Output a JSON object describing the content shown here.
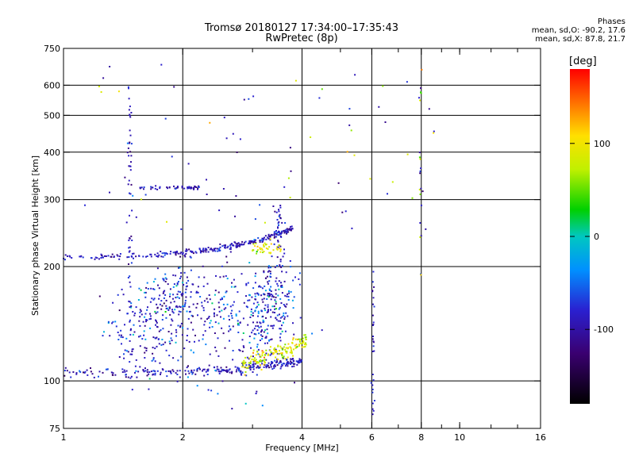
{
  "header": {
    "title_line1": "Tromsø 20180127 17:34:00–17:35:43",
    "title_line2": "RwPretec (8p)"
  },
  "phases_box": {
    "title": "Phases",
    "line_o": "mean, sd,O: -90.2, 17.6",
    "line_x": "mean, sd,X:  87.8, 21.7"
  },
  "colorbar": {
    "unit_label": "[deg]",
    "ticks": [
      "100",
      "0",
      "-100"
    ],
    "tick_values": [
      100,
      0,
      -100
    ],
    "range": [
      -180,
      180
    ]
  },
  "chart_data": {
    "type": "scatter",
    "xlabel": "Frequency [MHz]",
    "ylabel": "Stationary phase Virtual Height [km]",
    "x_scale": "log",
    "y_scale": "log",
    "xlim": [
      1,
      16
    ],
    "ylim": [
      75,
      750
    ],
    "x_ticks": [
      1,
      2,
      4,
      6,
      8,
      10,
      16
    ],
    "x_tick_labels": [
      "1",
      "2",
      "4",
      "6",
      "8",
      "10",
      "16"
    ],
    "y_ticks": [
      75,
      100,
      200,
      300,
      400,
      500,
      600,
      750
    ],
    "y_tick_labels": [
      "75",
      "100",
      "200",
      "300",
      "400",
      "500",
      "600",
      "750"
    ],
    "grid": true,
    "grid_x": [
      2,
      4,
      6,
      8
    ],
    "grid_y": [
      100,
      200,
      300,
      400,
      500,
      600
    ],
    "minor_x": [
      3,
      5,
      7,
      9,
      10,
      12,
      14
    ],
    "colormap_description": "phase in degrees, -180 (black/purple) to +180 (red)",
    "point_groups": [
      {
        "name": "O-mode E/F trace",
        "x_range": [
          1.0,
          4.0
        ],
        "y_func": "105*(1+0.08*((x-1)/3)^2)",
        "phase_mean": -90,
        "phase_sd": 18
      },
      {
        "name": "F2 trace",
        "x_range": [
          1.0,
          3.8
        ],
        "y_func": "212+((x-1)/2.8)^2*40",
        "phase_mean": -90,
        "phase_sd": 15
      },
      {
        "name": "X-mode trace",
        "x_range": [
          2.8,
          4.1
        ],
        "y_func": "110+((x-2.8)/1.3)*18",
        "phase_mean": 88,
        "phase_sd": 22
      }
    ]
  }
}
